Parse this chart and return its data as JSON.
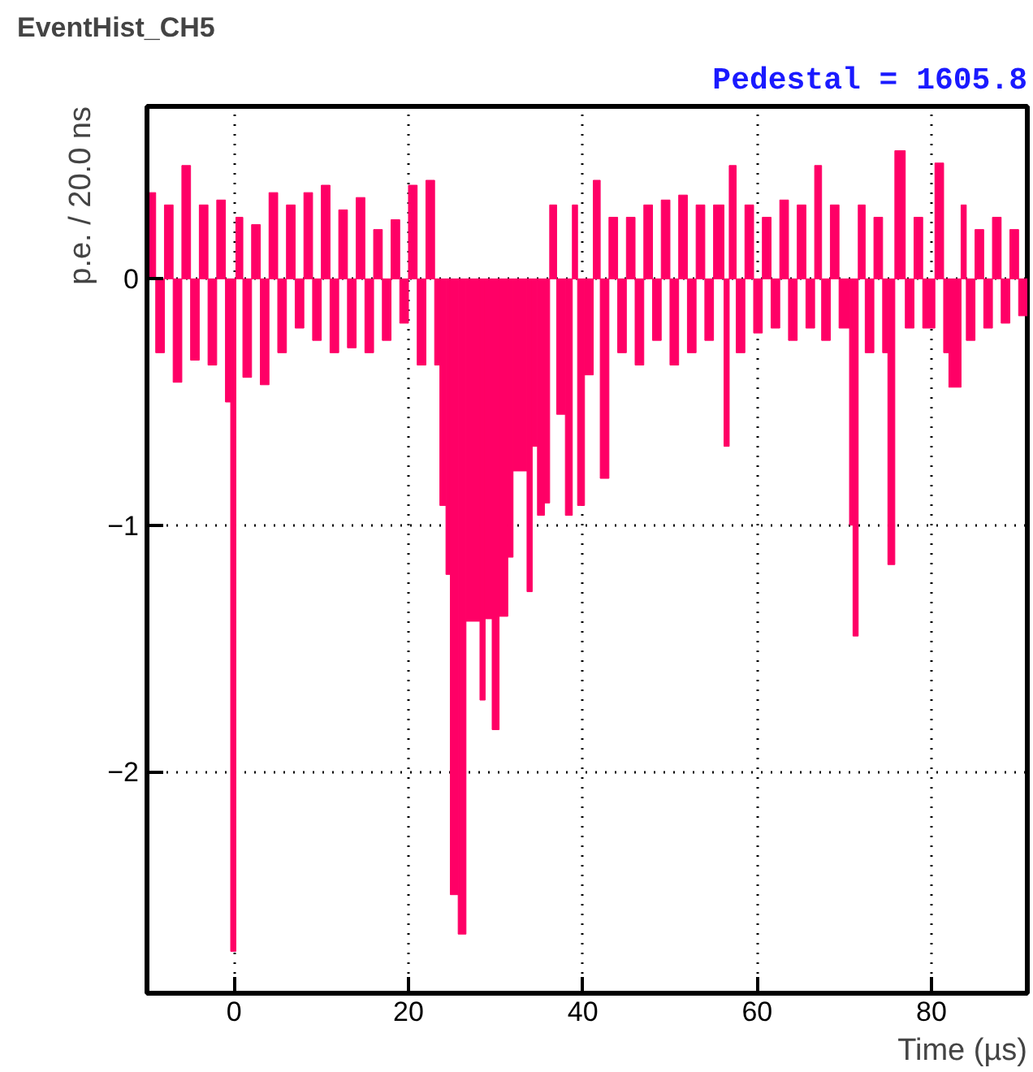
{
  "chart_data": {
    "type": "histogram",
    "title": "EventHist_CH5",
    "xlabel": "Time (µs)",
    "ylabel": "p.e. / 20.0 ns",
    "annotations": [
      "Pedestal = 1605.8"
    ],
    "color": "#ff0066",
    "bins": [
      -10,
      -9,
      -8,
      -7,
      -6,
      -5,
      -4,
      -3,
      -2,
      -1,
      -0.4,
      0.2,
      1,
      2,
      3,
      4,
      5,
      6,
      7,
      8,
      9,
      10,
      11,
      12,
      13,
      14,
      15,
      16,
      17,
      18,
      19,
      20,
      21,
      22,
      23,
      23.6,
      24.3,
      24.8,
      25.7,
      26.6,
      28.2,
      28.8,
      29.6,
      30.4,
      31.4,
      32,
      33.6,
      34.2,
      34.8,
      35.6,
      36.2,
      37,
      38,
      38.8,
      39.4,
      40.2,
      41.2,
      42,
      43,
      44,
      45,
      46,
      47,
      48,
      49,
      50,
      51,
      52,
      53,
      54,
      55,
      56.2,
      56.8,
      57.6,
      58.6,
      59.6,
      60.6,
      61.6,
      62.6,
      63.6,
      64.6,
      65.6,
      66.6,
      67.4,
      68.4,
      69.4,
      70.6,
      71,
      71.6,
      72.4,
      73.4,
      74.4,
      75,
      75.8,
      77,
      78,
      79,
      80.4,
      81.4,
      82,
      83.4,
      84,
      85,
      86,
      87,
      88,
      89,
      90,
      91
    ],
    "values": [
      0.35,
      -0.3,
      0.3,
      -0.42,
      0.46,
      -0.33,
      0.3,
      -0.35,
      0.32,
      -0.5,
      -2.73,
      0.25,
      -0.4,
      0.22,
      -0.43,
      0.35,
      -0.3,
      0.3,
      -0.2,
      0.35,
      -0.25,
      0.38,
      -0.3,
      0.28,
      -0.28,
      0.33,
      -0.3,
      0.2,
      -0.25,
      0.24,
      -0.18,
      0.38,
      -0.35,
      0.4,
      -0.35,
      -0.92,
      -1.2,
      -2.5,
      -2.66,
      -1.39,
      -1.71,
      -1.38,
      -1.83,
      -1.37,
      -1.13,
      -0.78,
      -1.27,
      -0.68,
      -0.96,
      -0.91,
      0.3,
      -0.55,
      -0.96,
      0.3,
      -0.92,
      -0.39,
      0.4,
      -0.81,
      0.25,
      -0.3,
      0.25,
      -0.35,
      0.3,
      -0.25,
      0.32,
      -0.35,
      0.34,
      -0.3,
      0.3,
      -0.25,
      0.3,
      -0.68,
      0.46,
      -0.3,
      0.3,
      -0.22,
      0.25,
      -0.2,
      0.32,
      -0.25,
      0.3,
      -0.2,
      0.46,
      -0.25,
      0.3,
      -0.2,
      -1.0,
      -1.45,
      0.3,
      -0.3,
      0.25,
      -0.3,
      -1.16,
      0.52,
      -0.2,
      0.25,
      -0.2,
      0.47,
      -0.3,
      -0.44,
      0.3,
      -0.25,
      0.2,
      -0.2,
      0.25,
      -0.18,
      0.2,
      -0.15
    ],
    "xlim": [
      -10,
      91
    ],
    "ylim": [
      -2.9,
      0.7
    ],
    "xticks": [
      0,
      20,
      40,
      60,
      80
    ],
    "yticks": [
      {
        "value": -2,
        "label": "−2"
      },
      {
        "value": -1,
        "label": "−1"
      },
      0
    ],
    "grid": true
  }
}
